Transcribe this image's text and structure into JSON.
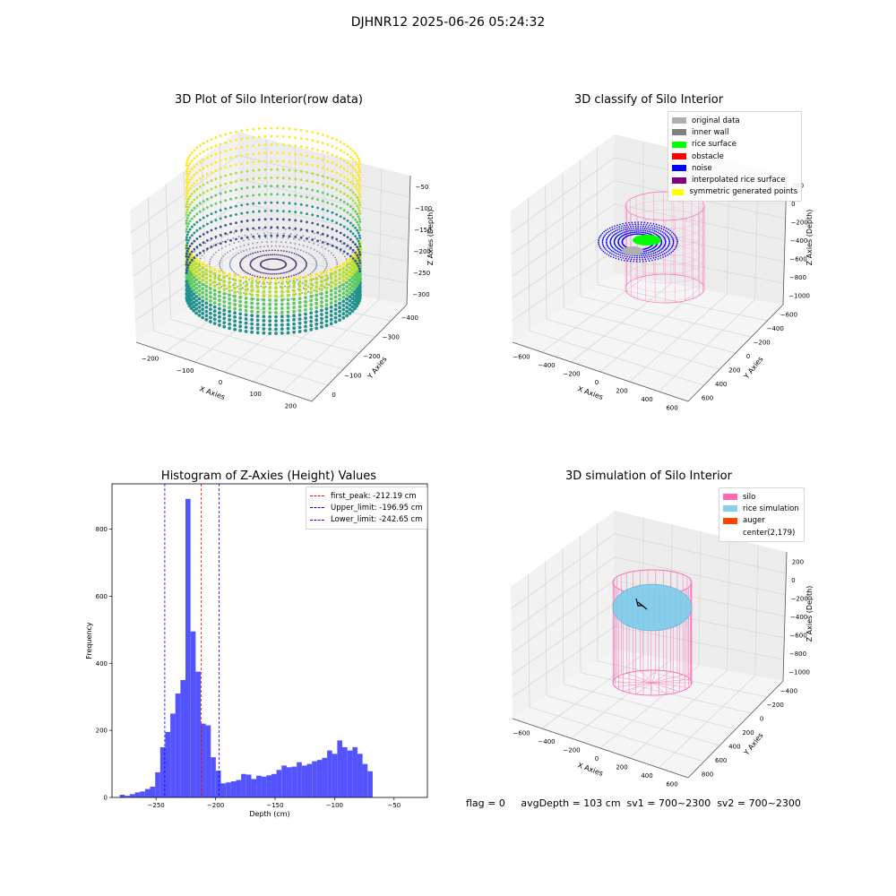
{
  "figure": {
    "suptitle": "DJHNR12 2025-06-26 05:24:32",
    "status_text": "flag = 0     avgDepth = 103 cm  sv1 = 700~2300  sv2 = 700~2300"
  },
  "chart_data": [
    {
      "type": "scatter",
      "title": "3D Plot of Silo Interior(row data)",
      "xlabel": "X Axies",
      "ylabel": "Y Axies",
      "zlabel": "Z Axies (Depth)",
      "x_ticks": [
        -200,
        -100,
        0,
        100,
        200
      ],
      "y_ticks": [
        0,
        -100,
        -200,
        -300,
        -400
      ],
      "z_ticks": [
        -50,
        -100,
        -150,
        -200,
        -250,
        -300
      ],
      "colormap": "viridis"
    },
    {
      "type": "scatter",
      "title": "3D classify of Silo Interior",
      "xlabel": "X Axies",
      "ylabel": "Y Axies",
      "zlabel": "Z Axies (Depth)",
      "x_ticks": [
        -600,
        -400,
        -200,
        0,
        200,
        400,
        600
      ],
      "y_ticks": [
        600,
        400,
        200,
        0,
        -200,
        -400,
        -600
      ],
      "z_ticks": [
        200,
        0,
        -200,
        -400,
        -600,
        -800,
        -1000
      ],
      "legend": [
        {
          "label": "original data",
          "color": "#b0b0b0"
        },
        {
          "label": "inner wall",
          "color": "#808080"
        },
        {
          "label": "rice surface",
          "color": "#00ff00"
        },
        {
          "label": "obstacle",
          "color": "#ff0000"
        },
        {
          "label": "noise",
          "color": "#0000ff"
        },
        {
          "label": "interpolated rice surface",
          "color": "#800080"
        },
        {
          "label": "symmetric generated points",
          "color": "#ffff00"
        }
      ]
    },
    {
      "type": "bar",
      "title": "Histogram of Z-Axies (Height) Values",
      "xlabel": "Depth (cm)",
      "ylabel": "Frequency",
      "xlim": [
        -287,
        -22
      ],
      "ylim": [
        0,
        935
      ],
      "x_ticks": [
        -250,
        -200,
        -150,
        -100,
        -50
      ],
      "y_ticks": [
        0,
        200,
        400,
        600,
        800
      ],
      "bar_color": "#4b4bff",
      "bin_start": -280.5,
      "bin_width": 4.25,
      "values": [
        8,
        5,
        10,
        15,
        18,
        25,
        32,
        75,
        150,
        195,
        250,
        310,
        350,
        890,
        495,
        375,
        220,
        215,
        120,
        80,
        42,
        45,
        48,
        52,
        70,
        68,
        55,
        65,
        62,
        66,
        70,
        82,
        95,
        90,
        92,
        105,
        95,
        100,
        108,
        112,
        118,
        140,
        130,
        170,
        150,
        140,
        150,
        130,
        100,
        78
      ],
      "vlines": [
        {
          "label": "first_peak: -212.19 cm",
          "x": -212.19,
          "color": "#ff0000"
        },
        {
          "label": "Upper_limit: -196.95 cm",
          "x": -196.95,
          "color": "#0000ff"
        },
        {
          "label": "Lower_limit: -242.65 cm",
          "x": -242.65,
          "color": "#0000ff"
        }
      ]
    },
    {
      "type": "scatter",
      "title": "3D simulation of Silo Interior",
      "xlabel": "X Axies",
      "ylabel": "Y Axies",
      "zlabel": "Z Axies (Depth)",
      "x_ticks": [
        -600,
        -400,
        -200,
        0,
        200,
        400,
        600
      ],
      "y_ticks": [
        800,
        600,
        400,
        200,
        0,
        -200,
        -400
      ],
      "z_ticks": [
        200,
        0,
        -200,
        -400,
        -600,
        -800,
        -1000
      ],
      "legend": [
        {
          "label": "silo",
          "color": "#ff69b4"
        },
        {
          "label": "rice simulation",
          "color": "#87ceeb"
        },
        {
          "label": "auger",
          "color": "#ff4500"
        },
        {
          "label": "center(2,179)",
          "color": "#ffffff"
        }
      ]
    }
  ]
}
